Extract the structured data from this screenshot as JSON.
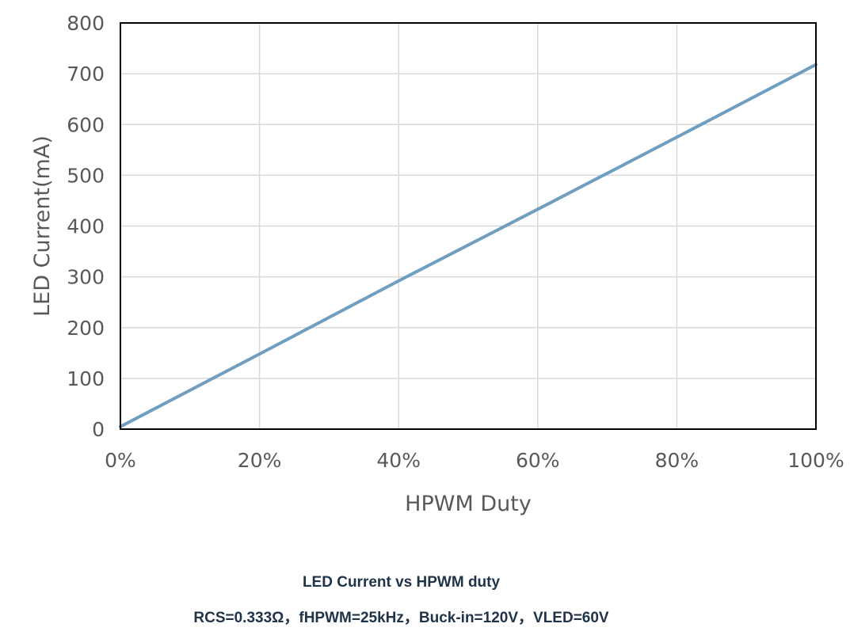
{
  "chart_data": {
    "type": "line",
    "xlabel": "HPWM Duty",
    "ylabel": "LED Current(mA)",
    "x_ticks": [
      "0%",
      "20%",
      "40%",
      "60%",
      "80%",
      "100%"
    ],
    "y_ticks": [
      "0",
      "100",
      "200",
      "300",
      "400",
      "500",
      "600",
      "700",
      "800"
    ],
    "xlim": [
      0,
      100
    ],
    "ylim": [
      0,
      800
    ],
    "grid": true,
    "series": [
      {
        "x": [
          0,
          20,
          40,
          60,
          80,
          100
        ],
        "y": [
          5,
          148,
          292,
          433,
          575,
          718
        ]
      }
    ],
    "colors": {
      "line": "#6f9ec1",
      "grid": "#d9d9d9",
      "plot_border": "#000000",
      "text": "#595959"
    }
  },
  "caption": {
    "title": "LED Current vs HPWM duty",
    "conditions": "RCS=0.333Ω，fHPWM=25kHz，Buck-in=120V，VLED=60V"
  }
}
